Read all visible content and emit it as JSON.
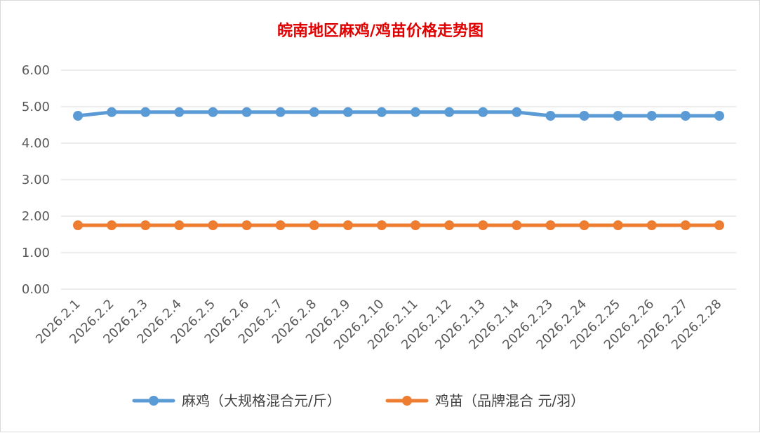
{
  "chart_data": {
    "type": "line",
    "title": "皖南地区麻鸡/鸡苗价格走势图",
    "xlabel": "",
    "ylabel": "",
    "ylim": [
      0,
      6
    ],
    "yticks": [
      "0.00",
      "1.00",
      "2.00",
      "3.00",
      "4.00",
      "5.00",
      "6.00"
    ],
    "grid": true,
    "legend_position": "bottom",
    "x": [
      "2026.2.1",
      "2026.2.2",
      "2026.2.3",
      "2026.2.4",
      "2026.2.5",
      "2026.2.6",
      "2026.2.7",
      "2026.2.8",
      "2026.2.9",
      "2026.2.10",
      "2026.2.11",
      "2026.2.12",
      "2026.2.13",
      "2026.2.14",
      "2026.2.23",
      "2026.2.24",
      "2026.2.25",
      "2026.2.26",
      "2026.2.27",
      "2026.2.28"
    ],
    "series": [
      {
        "name": "麻鸡（大规格混合元/斤）",
        "color": "#5b9bd5",
        "values": [
          4.75,
          4.85,
          4.85,
          4.85,
          4.85,
          4.85,
          4.85,
          4.85,
          4.85,
          4.85,
          4.85,
          4.85,
          4.85,
          4.85,
          4.75,
          4.75,
          4.75,
          4.75,
          4.75,
          4.75
        ]
      },
      {
        "name": "鸡苗（品牌混合 元/羽）",
        "color": "#ed7d31",
        "values": [
          1.75,
          1.75,
          1.75,
          1.75,
          1.75,
          1.75,
          1.75,
          1.75,
          1.75,
          1.75,
          1.75,
          1.75,
          1.75,
          1.75,
          1.75,
          1.75,
          1.75,
          1.75,
          1.75,
          1.75
        ]
      }
    ]
  }
}
